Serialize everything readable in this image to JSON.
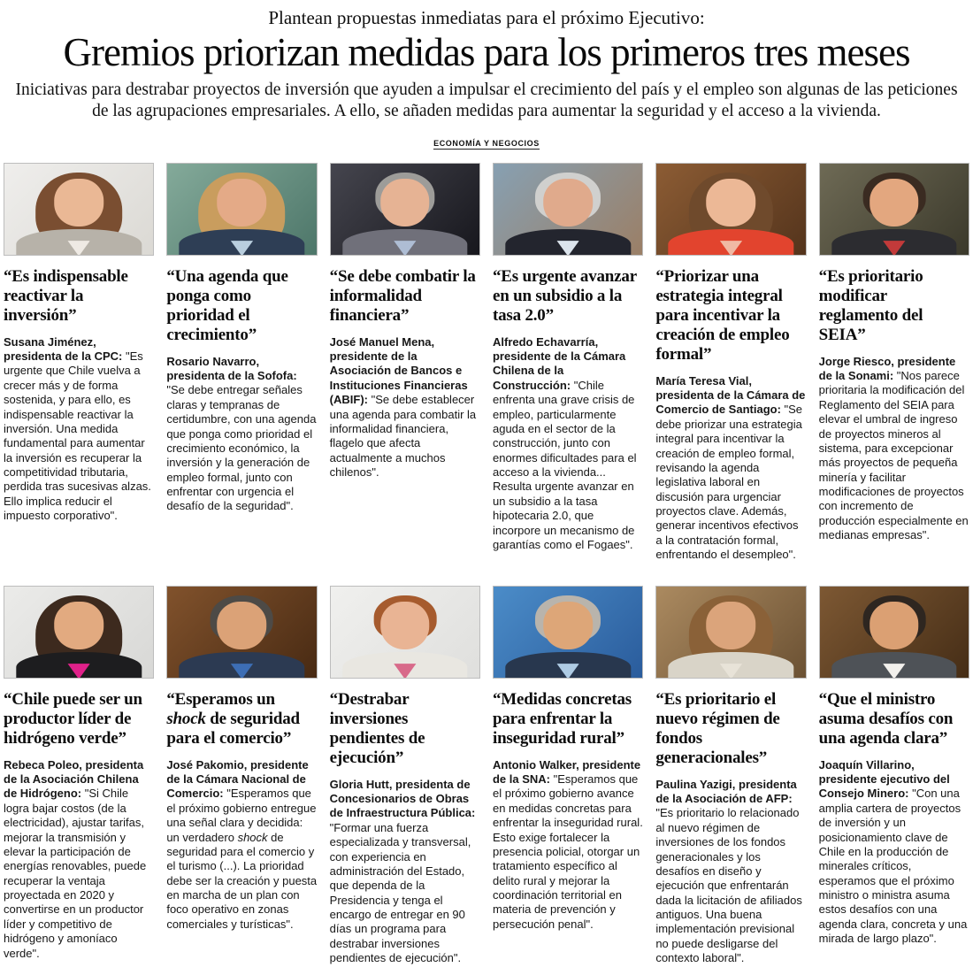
{
  "header": {
    "kicker": "Plantean propuestas inmediatas para el próximo Ejecutivo:",
    "headline": "Gremios priorizan medidas para los primeros tres meses",
    "deck": "Iniciativas para destrabar proyectos de inversión que ayuden a impulsar el crecimiento del país y el empleo son algunas de las peticiones de las agrupaciones empresariales. A ello, se añaden medidas para aumentar la seguridad y el acceso a la vivienda.",
    "section_tag": "ECONOMÍA Y NEGOCIOS"
  },
  "people": [
    {
      "quote_title": "“Es indispensable reactivar la inversión”",
      "attribution": "Susana Jiménez, presidenta de la CPC:",
      "quote_body": " \"Es urgente que Chile vuelva a crecer más y de forma sostenida, y para ello, es indispensable reactivar la inversión. Una medida fundamental para aumentar la inversión es recuperar la competitividad tributaria, perdida tras sucesivas alzas. Ello implica reducir el impuesto corporativo\".",
      "photo_style": "--bg1:#efeeec;--bg2:#dbd9d4;--hair:#7a4e31;--hairw:58%;--hairh:86%;--skin:#eab895;--suit:#b7b2a9;--shirt:#efeae4"
    },
    {
      "quote_title": "“Una agenda que ponga como prioridad el crecimiento”",
      "attribution": "Rosario Navarro, presidenta de la Sofofa:",
      "quote_body": " \"Se debe entregar señales claras y tempranas de certidumbre, con una agenda que ponga como prioridad el crecimiento económico, la inversión y la generación de empleo formal, junto con enfrentar con urgencia el desafío de la seguridad\".",
      "photo_style": "--bg1:#84aa9a;--bg2:#4d7669;--hair:#c99d5e;--hairw:58%;--hairh:88%;--skin:#e4aa87;--suit:#2e3e55;--shirt:#b9cede"
    },
    {
      "quote_title": "“Se debe combatir la informalidad financiera”",
      "attribution": "José Manuel Mena, presidente de la Asociación de Bancos e Instituciones Financieras (ABIF):",
      "quote_body": " \"Se debe establecer una agenda para combatir la informalidad financiera, flagelo que afecta actualmente a muchos chilenos\".",
      "photo_style": "--bg1:#45454e;--bg2:#17171d;--hair:#9d9c99;--hairw:40%;--hairh:52%;--skin:#e6b394;--suit:#70707a;--shirt:#aebdd4"
    },
    {
      "quote_title": "“Es urgente avanzar en un subsidio a la tasa 2.0”",
      "attribution": "Alfredo Echavarría, presidente de la Cámara Chilena de la Construcción:",
      "quote_body": " \"Chile enfrenta una grave crisis de empleo, particularmente aguda en el sector de la construcción, junto con enormes dificultades para el acceso a la vivienda... Resulta urgente avanzar en un subsidio a la tasa hipotecaria 2.0, que incorpore un mecanismo de garantías como el Fogaes\".",
      "photo_style": "--bg1:#87a0b2;--bg2:#9b7f66;--hair:#d0d0ce;--hairw:44%;--hairh:54%;--skin:#e0aa8c;--suit:#23252e;--shirt:#dce4ec"
    },
    {
      "quote_title": "“Priorizar una estrategia integral para incentivar la creación de empleo formal”",
      "attribution": "María Teresa Vial, presidenta de la Cámara de Comercio de Santiago:",
      "quote_body": " \"Se debe priorizar una estrategia integral para incentivar la creación de empleo formal, revisando la agenda legislativa laboral en discusión para urgenciar proyectos clave. Además, generar incentivos efectivos a la contratación formal, enfrentando el desempleo\".",
      "photo_style": "--bg1:#8c5c34;--bg2:#54341c;--hair:#6f4a2c;--hairw:56%;--hairh:86%;--skin:#ecb896;--suit:#e2442e;--shirt:#f0b9a4"
    },
    {
      "quote_title": "“Es prioritario modificar reglamento del SEIA”",
      "attribution": "Jorge Riesco, presidente de la Sonami:",
      "quote_body": " \"Nos parece prioritaria la modificación del Reglamento del SEIA para elevar el umbral de ingreso de proyectos mineros al sistema, para excepcionar más proyectos de pequeña minería y facilitar modificaciones de proyectos con incremento de producción especialmente en medianas empresas\".",
      "photo_style": "--bg1:#6e6a55;--bg2:#3b392b;--hair:#3a2b21;--hairw:42%;--hairh:52%;--skin:#e3a77f;--suit:#2c2c30;--shirt:#c23a3a"
    },
    {
      "quote_title": "“Chile puede ser un productor líder de hidrógeno verde”",
      "attribution": "Rebeca Poleo, presidenta de la Asociación Chilena de Hidrógeno:",
      "quote_body": " \"Si Chile logra bajar costos (de la electricidad), ajustar tarifas, mejorar la transmisión y elevar la participación de energías renovables, puede recuperar la ventaja proyectada en 2020 y convertirse en un productor líder y competitivo de hidrógeno y amoníaco verde\".",
      "photo_style": "--bg1:#ebebe9;--bg2:#d8d8d6;--hair:#3d2a1e;--hairw:58%;--hairh:88%;--skin:#e2aa80;--suit:#1d1d1f;--shirt:#e0218a"
    },
    {
      "quote_title_rich": [
        {
          "t": "“Esperamos un "
        },
        {
          "t": "shock",
          "i": true
        },
        {
          "t": " de seguridad para el comercio”"
        }
      ],
      "attribution": "José Pakomio, presidente de la Cámara Nacional de Comercio:",
      "quote_body_rich": [
        {
          "t": " \"Esperamos que el próximo gobierno entregue una señal clara y decidida: un verdadero "
        },
        {
          "t": "shock",
          "i": true
        },
        {
          "t": " de seguridad para el comercio y el turismo (...). La prioridad debe ser la creación y puesta en marcha de un plan con foco operativo en zonas comerciales y turísticas\"."
        }
      ],
      "photo_style": "--bg1:#81522c;--bg2:#482a13;--hair:#4d4a46;--hairw:42%;--hairh:52%;--skin:#dba277;--suit:#2c3a52;--shirt:#3d6eb5"
    },
    {
      "quote_title": "“Destrabar inversiones pendientes de ejecución”",
      "attribution": "Gloria Hutt, presidenta de Concesionarios de Obras de Infraestructura Pública:",
      "quote_body": " \"Formar una fuerza especializada y transversal, con experiencia en administración del Estado, que dependa de la Presidencia y tenga el encargo de entregar en 90 días un programa para destrabar inversiones pendientes de ejecución\".",
      "photo_style": "--bg1:#f0f0ee;--bg2:#dfdfdd;--hair:#a65b2e;--hairw:42%;--hairh:50%;--skin:#e9b494;--suit:#e9e7e1;--shirt:#d86a8a"
    },
    {
      "quote_title": "“Medidas concretas para enfrentar la inseguridad rural”",
      "attribution": "Antonio Walker, presidente de la SNA:",
      "quote_body": " \"Esperamos que el próximo gobierno avance en medidas concretas para enfrentar la inseguridad rural. Esto exige fortalecer la presencia policial, otorgar un tratamiento específico al delito rural y mejorar la coordinación territorial en materia de prevención y persecución penal\".",
      "photo_style": "--bg1:#4b8cc8;--bg2:#2a5c9c;--hair:#b9b4ac;--hairw:44%;--hairh:52%;--skin:#ddA678;--suit:#28374e;--shirt:#aecbe4"
    },
    {
      "quote_title": "“Es prioritario el nuevo régimen de fondos generacionales”",
      "attribution": "Paulina Yazigi, presidenta de la Asociación de AFP:",
      "quote_body": " \"Es prioritario lo relacionado al nuevo régimen de inversiones de los fondos generacionales y los desafíos en diseño y ejecución que enfrentarán dada la licitación de afiliados antiguos. Una buena implementación previsional no puede desligarse del contexto laboral\".",
      "photo_style": "--bg1:#ab8a60;--bg2:#6b5133;--hair:#8a6138;--hairw:56%;--hairh:86%;--skin:#dba47b;--suit:#d9d4c8;--shirt:#e8e3d8"
    },
    {
      "quote_title": "“Que el ministro asuma desafíos con una agenda clara”",
      "attribution": "Joaquín Villarino, presidente ejecutivo del Consejo Minero:",
      "quote_body": " \"Con una amplia cartera de proyectos de inversión y un posicionamiento clave de Chile en la producción de minerales críticos, esperamos que el próximo ministro o ministra asuma estos desafíos con una agenda clara, concreta y una mirada de largo plazo\".",
      "photo_style": "--bg1:#7d5833;--bg2:#452d16;--hair:#2e2620;--hairw:42%;--hairh:52%;--skin:#dba073;--suit:#4e5257;--shirt:#f2f0ec"
    }
  ]
}
